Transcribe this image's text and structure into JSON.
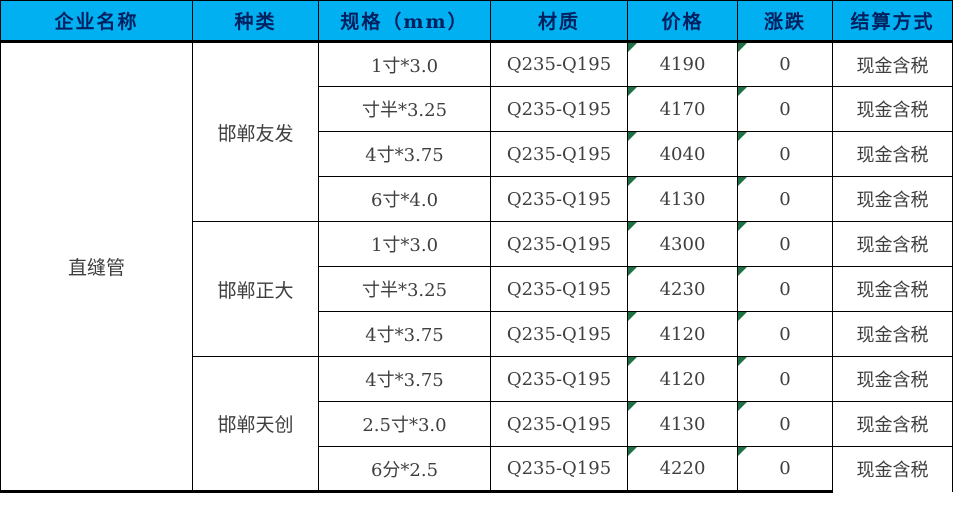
{
  "header": {
    "columns": [
      "企业名称",
      "种类",
      "规格（mm）",
      "材质",
      "价格",
      "涨跌",
      "结算方式"
    ]
  },
  "table": {
    "product": "直缝管",
    "groups": [
      {
        "vendor": "邯郸友发",
        "rows": [
          {
            "spec": "1寸*3.0",
            "material": "Q235-Q195",
            "price": "4190",
            "change": "0",
            "settlement": "现金含税"
          },
          {
            "spec": "寸半*3.25",
            "material": "Q235-Q195",
            "price": "4170",
            "change": "0",
            "settlement": "现金含税"
          },
          {
            "spec": "4寸*3.75",
            "material": "Q235-Q195",
            "price": "4040",
            "change": "0",
            "settlement": "现金含税"
          },
          {
            "spec": "6寸*4.0",
            "material": "Q235-Q195",
            "price": "4130",
            "change": "0",
            "settlement": "现金含税"
          }
        ]
      },
      {
        "vendor": "邯郸正大",
        "rows": [
          {
            "spec": "1寸*3.0",
            "material": "Q235-Q195",
            "price": "4300",
            "change": "0",
            "settlement": "现金含税"
          },
          {
            "spec": "寸半*3.25",
            "material": "Q235-Q195",
            "price": "4230",
            "change": "0",
            "settlement": "现金含税"
          },
          {
            "spec": "4寸*3.75",
            "material": "Q235-Q195",
            "price": "4120",
            "change": "0",
            "settlement": "现金含税"
          }
        ]
      },
      {
        "vendor": "邯郸天创",
        "rows": [
          {
            "spec": "4寸*3.75",
            "material": "Q235-Q195",
            "price": "4120",
            "change": "0",
            "settlement": "现金含税"
          },
          {
            "spec": "2.5寸*3.0",
            "material": "Q235-Q195",
            "price": "4130",
            "change": "0",
            "settlement": "现金含税"
          },
          {
            "spec": "6分*2.5",
            "material": "Q235-Q195",
            "price": "4220",
            "change": "0",
            "settlement": "现金含税"
          }
        ]
      }
    ]
  },
  "icons": {
    "error_flag": "green-corner-triangle"
  },
  "colors": {
    "header_bg": "#00b0f0",
    "header_text": "#002060",
    "body_text": "#3f3f3f",
    "border": "#000000",
    "flag": "#1e7145",
    "background": "#ffffff"
  }
}
